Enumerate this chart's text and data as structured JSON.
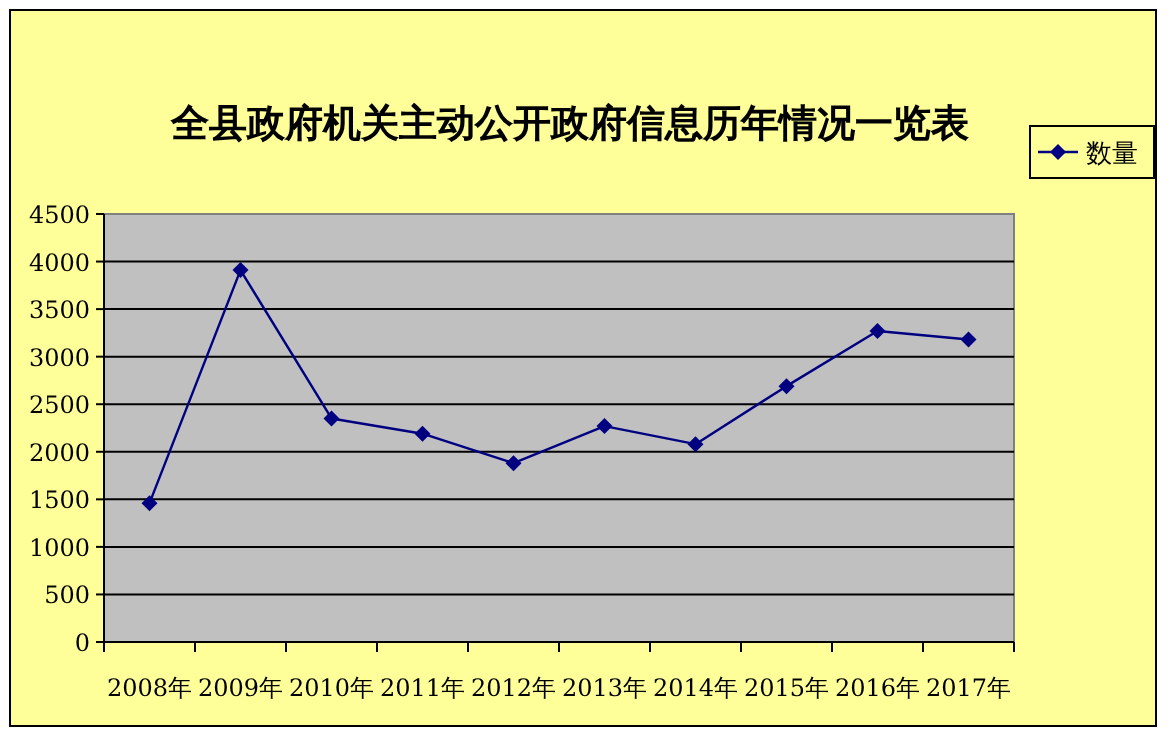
{
  "chart_data": {
    "type": "line",
    "title": "全县政府机关主动公开政府信息历年情况一览表",
    "categories": [
      "2008年",
      "2009年",
      "2010年",
      "2011年",
      "2012年",
      "2013年",
      "2014年",
      "2015年",
      "2016年",
      "2017年"
    ],
    "series": [
      {
        "name": "数量",
        "color": "#000080",
        "values": [
          1460,
          3910,
          2350,
          2190,
          1880,
          2270,
          2080,
          2690,
          3270,
          3180
        ]
      }
    ],
    "ylim": [
      0,
      4500
    ],
    "yticks": [
      0,
      500,
      1000,
      1500,
      2000,
      2500,
      3000,
      3500,
      4000,
      4500
    ],
    "grid": "y",
    "legend": "right",
    "marker": "diamond",
    "line_style": "solid"
  }
}
